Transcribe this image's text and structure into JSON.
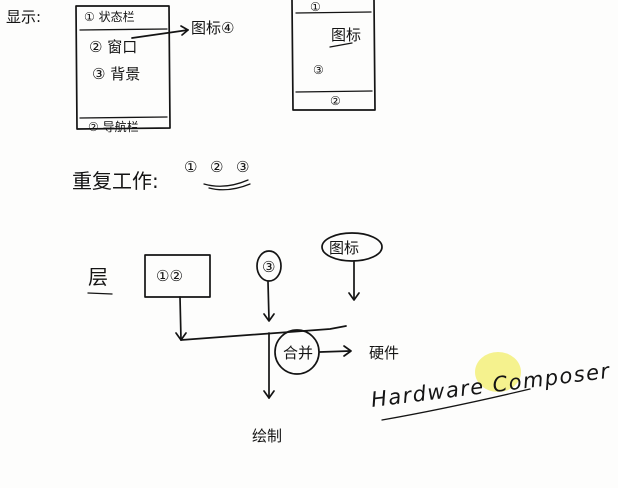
{
  "labels": {
    "display": "显示:",
    "status_bar": "① 状态栏",
    "window": "② 窗口",
    "background": "③ 背景",
    "nav_bar": "② 导航栏",
    "icon_arrow": "图标④",
    "phone2_top": "①",
    "phone2_icon": "图标",
    "phone2_mid": "③",
    "phone2_bottom": "②",
    "redraw": "重复工作:",
    "redraw_items": [
      "①",
      "②",
      "③"
    ],
    "layer": "层",
    "box_12": "①②",
    "item_3": "③",
    "item_icon": "图标",
    "compose": "合并",
    "hardware": "硬件",
    "hwc": "Hardware Composer",
    "draw": "绘制"
  },
  "colors": {
    "ink": "#141414",
    "highlight": "#f2ee6a"
  }
}
